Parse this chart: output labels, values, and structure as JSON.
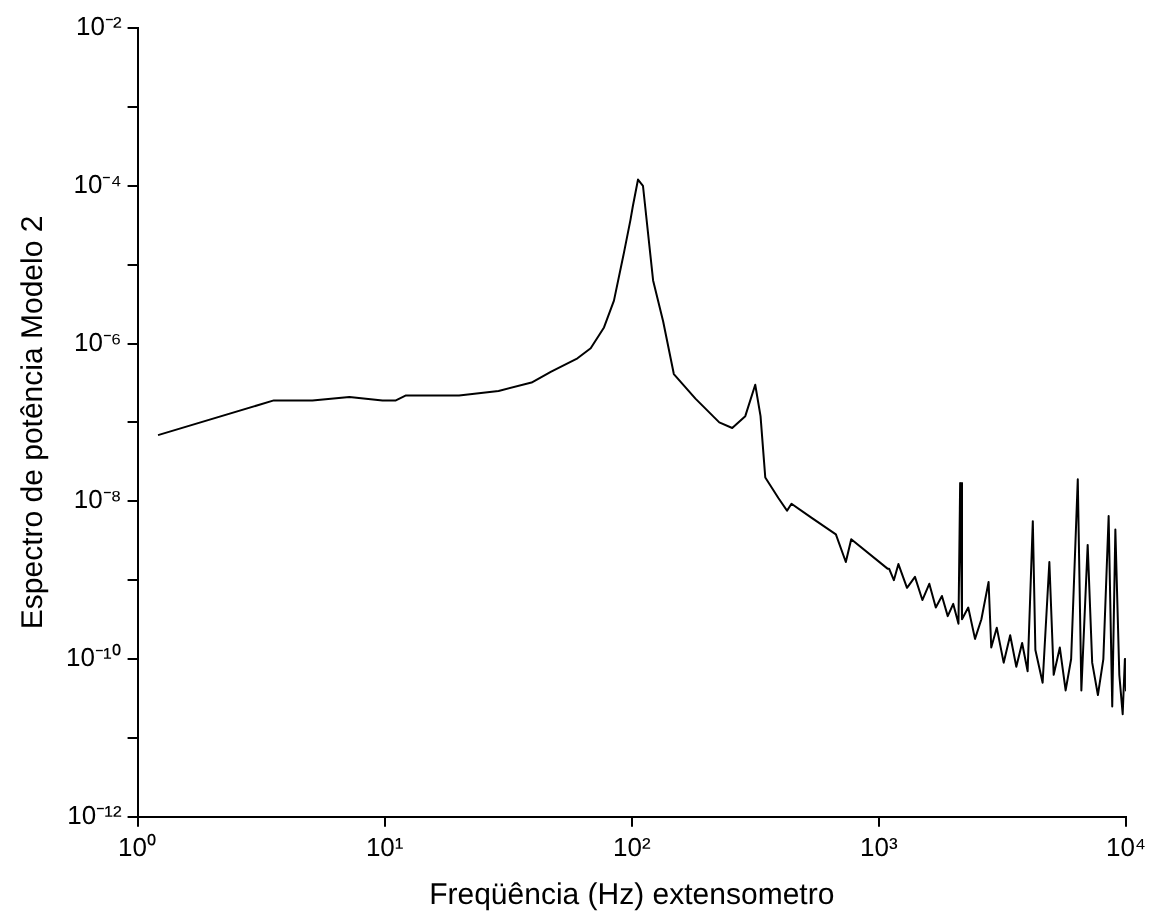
{
  "chart_data": {
    "type": "line",
    "xlabel": "Freqüência (Hz) extensometro",
    "ylabel": "Espectro de potência Modelo 2",
    "log": "xy",
    "grid": false,
    "legend": false,
    "marker": "none",
    "line_style": "solid",
    "xlim": [
      1,
      10000
    ],
    "xticks": [
      {
        "value": 1,
        "label": "10⁰"
      },
      {
        "value": 10,
        "label": "10¹"
      },
      {
        "value": 100,
        "label": "10²"
      },
      {
        "value": 1000,
        "label": "10³"
      },
      {
        "value": 10000,
        "label": "10⁴"
      }
    ],
    "ylim": [
      1e-12,
      0.01
    ],
    "yticks": [
      {
        "value": 1e-12,
        "label": "10⁻¹²"
      },
      {
        "value": 1e-11,
        "label": null
      },
      {
        "value": 1e-10,
        "label": "10⁻¹⁰"
      },
      {
        "value": 1e-09,
        "label": null
      },
      {
        "value": 1e-08,
        "label": "10⁻⁸"
      },
      {
        "value": 1e-07,
        "label": null
      },
      {
        "value": 1e-06,
        "label": "10⁻⁶"
      },
      {
        "value": 1e-05,
        "label": null
      },
      {
        "value": 0.0001,
        "label": "10⁻⁴"
      },
      {
        "value": 0.001,
        "label": null
      },
      {
        "value": 0.01,
        "label": "10⁻²"
      }
    ],
    "series": [
      {
        "color": "#000000",
        "x": [
          1.21,
          3.56,
          5.1,
          7.2,
          9.8,
          11.1,
          12.2,
          20,
          28.9,
          39.3,
          47.2,
          60.3,
          68.2,
          77.2,
          84.7,
          92.9,
          98.8,
          101,
          106,
          111,
          122,
          134,
          148,
          181,
          226,
          255,
          288,
          316,
          332,
          347,
          392,
          425,
          443,
          533,
          670,
          735,
          773,
          1084,
          1100,
          1150,
          1200,
          1300,
          1400,
          1500,
          1600,
          1700,
          1800,
          1900,
          2000,
          2100,
          2133,
          2170,
          2300,
          2450,
          2600,
          2780,
          2850,
          3000,
          3200,
          3400,
          3600,
          3800,
          4000,
          4198,
          4300,
          4600,
          4898,
          5100,
          5400,
          5700,
          6000,
          6383,
          6600,
          7000,
          7300,
          7700,
          8100,
          8510,
          8800,
          9060,
          9400,
          9700,
          9900,
          10000
        ],
        "values": [
          6.9e-08,
          1.9e-07,
          1.9e-07,
          2.1e-07,
          1.9e-07,
          1.9e-07,
          2.2e-07,
          2.2e-07,
          2.5e-07,
          3.2e-07,
          4.4e-07,
          6.5e-07,
          8.7e-07,
          1.6e-06,
          3.5e-06,
          1.4e-05,
          3.7e-05,
          5.5e-05,
          0.00012,
          0.0001,
          6.3e-06,
          1.9e-06,
          4.1e-07,
          2e-07,
          1e-07,
          8.5e-08,
          1.2e-07,
          3e-07,
          1.2e-07,
          2e-08,
          1.1e-08,
          7.6e-09,
          9.3e-09,
          6.2e-09,
          3.8e-09,
          1.7e-09,
          3.3e-09,
          1.4e-09,
          1.4e-09,
          1e-09,
          1.6e-09,
          8e-10,
          1.1e-09,
          5.6e-10,
          9e-10,
          4.5e-10,
          6.3e-10,
          3.5e-10,
          5e-10,
          2.8e-10,
          1.7e-08,
          3.2e-10,
          4.5e-10,
          1.8e-10,
          3.2e-10,
          9.5e-10,
          1.4e-10,
          2.5e-10,
          9e-11,
          2e-10,
          8e-11,
          1.6e-10,
          7e-11,
          5.6e-09,
          1.3e-10,
          5e-11,
          1.7e-09,
          6.3e-11,
          1.4e-10,
          4e-11,
          1e-10,
          1.9e-08,
          4e-11,
          2.8e-09,
          9e-11,
          3.5e-11,
          1e-10,
          6.5e-09,
          2.5e-11,
          4.4e-09,
          6.3e-11,
          2e-11,
          1e-10,
          4e-11
        ]
      }
    ]
  }
}
